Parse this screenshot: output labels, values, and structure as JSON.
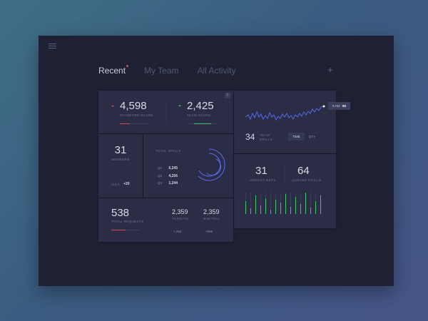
{
  "tabs": [
    {
      "label": "Recent",
      "active": true
    },
    {
      "label": "My Team",
      "active": false
    },
    {
      "label": "All Activity",
      "active": false
    }
  ],
  "add_label": "+",
  "info_label": "!",
  "scans": {
    "standard_value": "4,598",
    "standard_label": "STANDARD SCANS",
    "team_value": "2,425",
    "team_label": "TEAM SCANS"
  },
  "drills_chart": {
    "tooltip_time": "9 AM :",
    "tooltip_value": "50",
    "team_drills_value": "34",
    "team_drills_label_1": "TEAM",
    "team_drills_label_2": "DRILLS",
    "toggle_time": "TIME",
    "toggle_qty": "QTY"
  },
  "members": {
    "value": "31",
    "label": "MEMBERS",
    "month": "JULY",
    "delta": "+20"
  },
  "total_drills": {
    "title": "TOTAL DRILLS",
    "rows": [
      {
        "label": "Q1",
        "value": "6,245"
      },
      {
        "label": "Q2",
        "value": "4,256"
      },
      {
        "label": "Q3",
        "value": "1,244"
      }
    ]
  },
  "reps": {
    "urgent_value": "31",
    "urgent_label": "URGENT REPS",
    "queued_value": "64",
    "queued_label": "QUEUED DRILLS"
  },
  "requests": {
    "total_value": "538",
    "total_label": "TOTAL REQUESTS",
    "threats_value": "2,359",
    "threats_label": "THREATS",
    "threats_delta": "+ 264",
    "neutral_value": "2,359",
    "neutral_label": "NUETRAL",
    "neutral_delta": "+856"
  },
  "colors": {
    "accent_red": "#e0445a",
    "accent_green": "#3fc46a",
    "accent_blue": "#5b6cf0"
  },
  "icons": [
    "menu-icon",
    "plus-icon",
    "info-icon",
    "triangle-down-icon",
    "triangle-up-icon"
  ]
}
